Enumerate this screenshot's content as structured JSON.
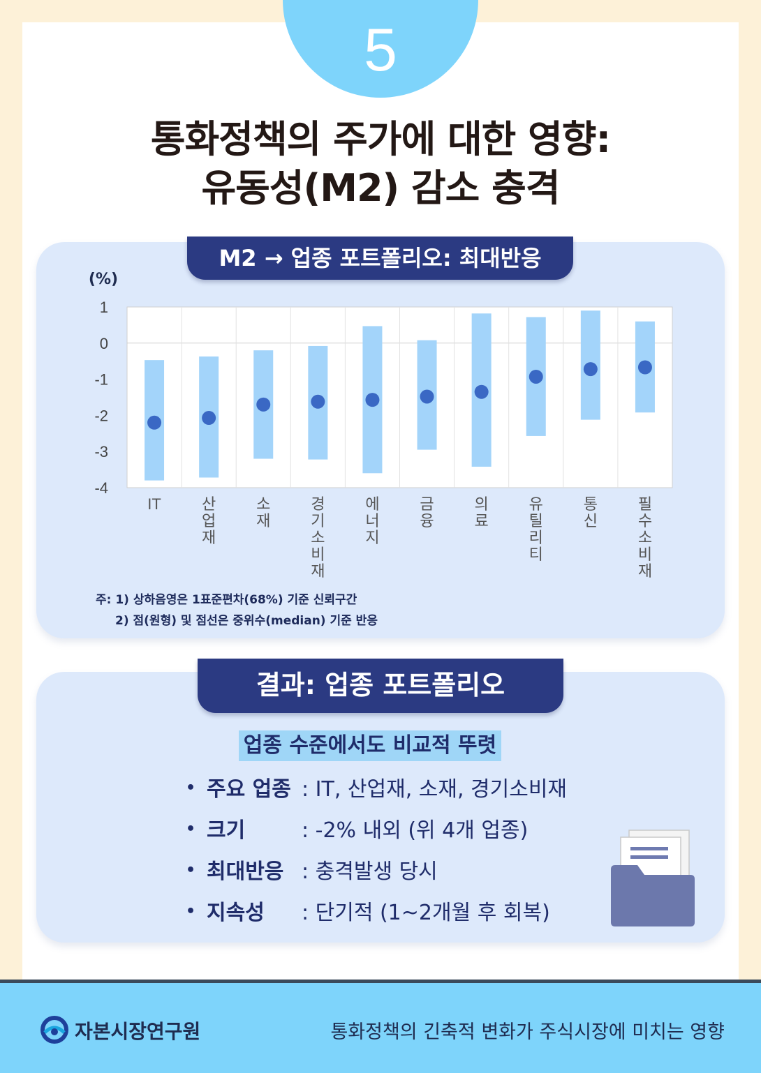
{
  "badge": "5",
  "title": {
    "line1": "통화정책의 주가에 대한 영향:",
    "line2": "유동성(M2) 감소 충격"
  },
  "chart_panel": {
    "tab": "M2 → 업종 포트폴리오: 최대반응",
    "notes": [
      "주: 1) 상하음영은 1표준편차(68%) 기준 신뢰구간",
      "2) 점(원형) 및 점선은 중위수(median) 기준 반응"
    ]
  },
  "chart_data": {
    "type": "interval",
    "ylabel": "(%)",
    "ylim": [
      -4,
      1
    ],
    "yticks": [
      1,
      0,
      -1,
      -2,
      -3,
      -4
    ],
    "categories": [
      "IT",
      "산업재",
      "소재",
      "경기소비재",
      "에너지",
      "금융",
      "의료",
      "유틸리티",
      "통신",
      "필수소비재"
    ],
    "median": [
      -2.2,
      -2.07,
      -1.7,
      -1.62,
      -1.57,
      -1.48,
      -1.35,
      -0.93,
      -0.72,
      -0.67
    ],
    "lower": [
      -3.8,
      -3.72,
      -3.2,
      -3.22,
      -3.6,
      -2.95,
      -3.42,
      -2.57,
      -2.12,
      -1.92
    ],
    "upper": [
      -0.47,
      -0.37,
      -0.2,
      -0.08,
      0.47,
      0.08,
      0.82,
      0.72,
      0.9,
      0.6
    ],
    "colors": {
      "band": "#a3d4fa",
      "dot": "#3a68c4",
      "grid": "#cfcfcf"
    }
  },
  "result_panel": {
    "tab": "결과: 업종 포트폴리오",
    "highlight": "업종 수준에서도 비교적 뚜렷",
    "bullet": "•",
    "items": [
      {
        "key": "주요 업종",
        "value": ": IT, 산업재, 소재, 경기소비재"
      },
      {
        "key": "크기",
        "value": ": -2% 내외 (위 4개 업종)"
      },
      {
        "key": "최대반응",
        "value": ": 충격발생 당시"
      },
      {
        "key": "지속성",
        "value": ": 단기적 (1~2개월 후 회복)"
      }
    ]
  },
  "footer": {
    "org": "자본시장연구원",
    "report": "통화정책의 긴축적 변화가 주식시장에 미치는 영향"
  }
}
